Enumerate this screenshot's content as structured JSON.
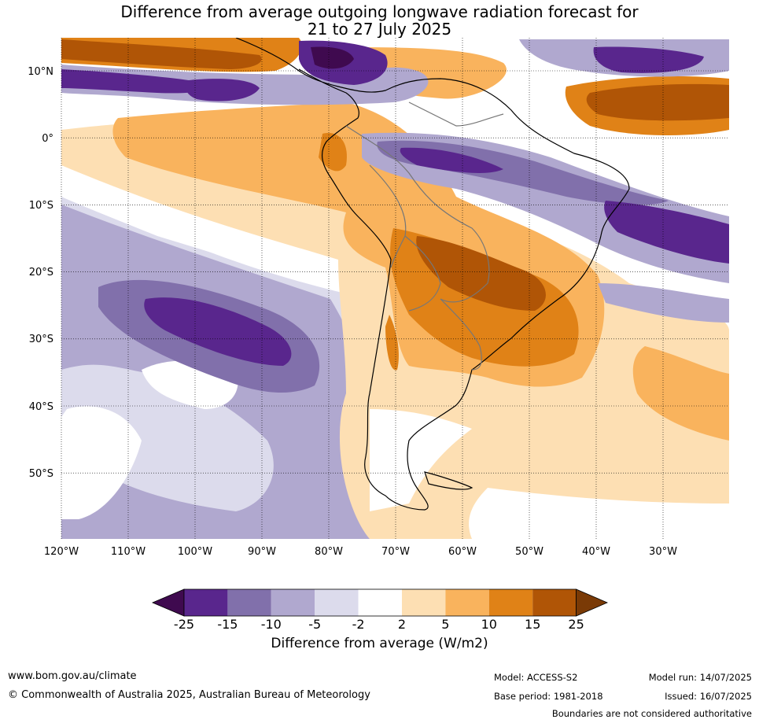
{
  "title_line1": "Difference from average outgoing longwave radiation forecast for",
  "title_line2": "21 to 27 July 2025",
  "lat_labels": [
    "10°N",
    "0°",
    "10°S",
    "20°S",
    "30°S",
    "40°S",
    "50°S"
  ],
  "lon_labels": [
    "120°W",
    "110°W",
    "100°W",
    "90°W",
    "80°W",
    "70°W",
    "60°W",
    "50°W",
    "40°W",
    "30°W"
  ],
  "colorbar": {
    "title": "Difference from average (W/m2)",
    "ticks": [
      "-25",
      "-15",
      "-10",
      "-5",
      "-2",
      "2",
      "5",
      "10",
      "15",
      "25"
    ],
    "colors": [
      "#3f0a4f",
      "#59268d",
      "#8170ab",
      "#b0a8cf",
      "#dcdbec",
      "#ffffff",
      "#fddfb3",
      "#f9b35d",
      "#e08217",
      "#b05506",
      "#7a3a06"
    ]
  },
  "footer": {
    "url": "www.bom.gov.au/climate",
    "copyright": "© Commonwealth of Australia 2025, Australian Bureau of Meteorology",
    "model": "Model: ACCESS-S2",
    "base_period": "Base period: 1981-2018",
    "model_run": "Model run: 14/07/2025",
    "issued": "Issued: 16/07/2025",
    "disclaimer": "Boundaries are not considered authoritative"
  }
}
